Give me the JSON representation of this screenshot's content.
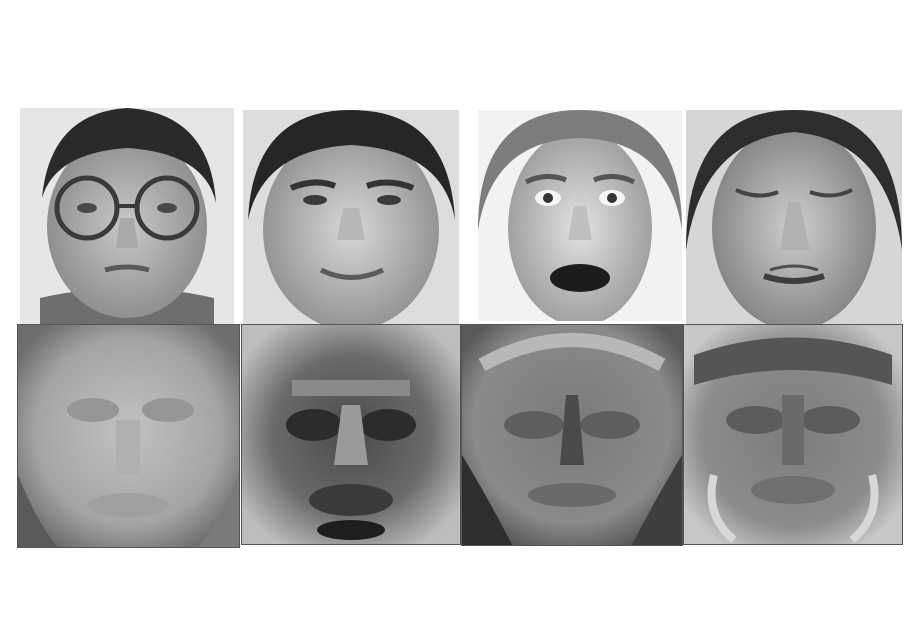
{
  "figure": {
    "background": "#ffffff",
    "top_row": [
      {
        "subject": "man-with-round-glasses",
        "tone": "#9a9a9a"
      },
      {
        "subject": "smiling-man",
        "tone": "#a6a6a6"
      },
      {
        "subject": "surprised-man-open-mouth",
        "tone": "#b0b0b0"
      },
      {
        "subject": "man-eyes-closed",
        "tone": "#9c9c9c"
      }
    ],
    "bottom_row": [
      {
        "subject": "eigenface-light",
        "tone": "#a8a8a8"
      },
      {
        "subject": "eigenface-dark",
        "tone": "#6a6a6a"
      },
      {
        "subject": "eigenface-grey-textured",
        "tone": "#7a7a7a"
      },
      {
        "subject": "eigenface-medium",
        "tone": "#808080"
      }
    ]
  }
}
